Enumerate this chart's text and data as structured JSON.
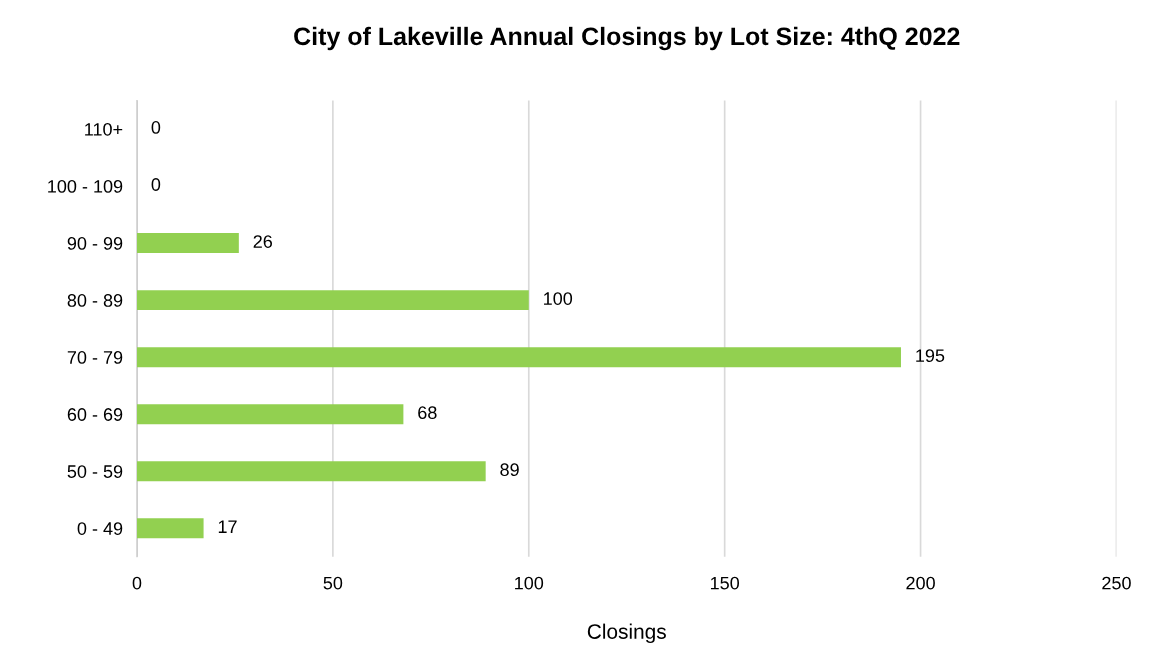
{
  "chart_data": {
    "type": "bar",
    "orientation": "horizontal",
    "title": "City of Lakeville Annual Closings by Lot Size: 4thQ 2022",
    "xlabel": "Closings",
    "categories": [
      "110+",
      "100 - 109",
      "90 - 99",
      "80 - 89",
      "70 - 79",
      "60 - 69",
      "50 - 59",
      "0 - 49"
    ],
    "values": [
      0,
      0,
      26,
      100,
      195,
      68,
      89,
      17
    ],
    "color": "#92d050",
    "xlim": [
      0,
      250
    ],
    "xticks": [
      0,
      50,
      100,
      150,
      200,
      250
    ],
    "grid": "x",
    "data_labels": true,
    "legend": false
  }
}
